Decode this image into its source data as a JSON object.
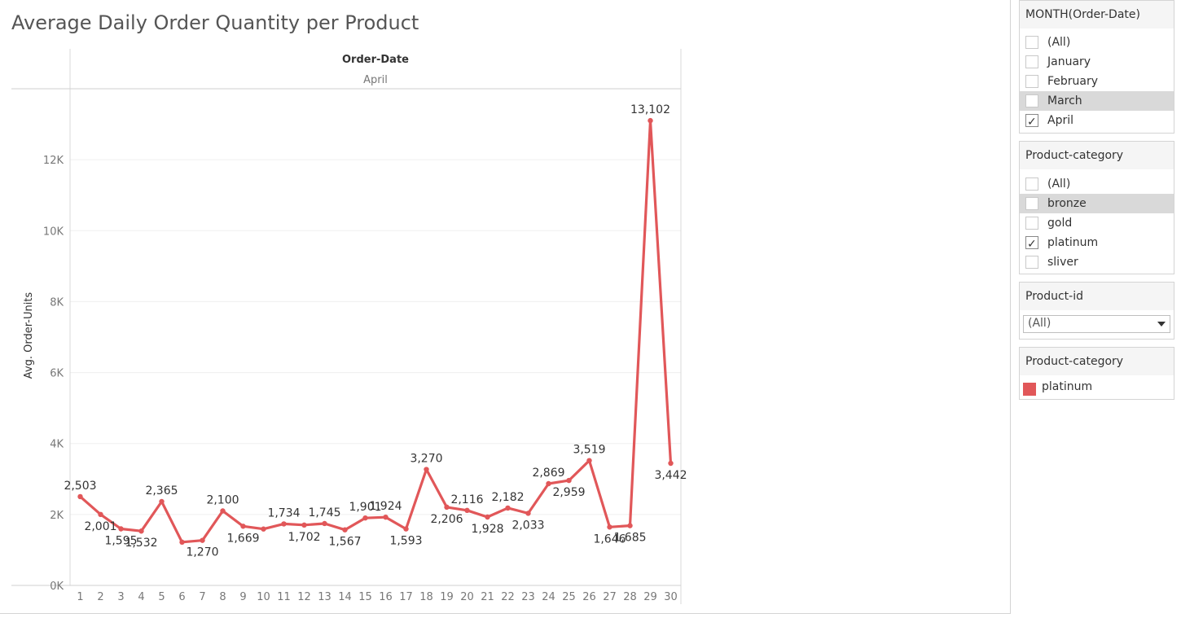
{
  "title": "Average Daily Order Quantity per Product",
  "chart_data": {
    "type": "line",
    "column_header": "Order-Date",
    "column_value": "April",
    "ylabel": "Avg. Order-Units",
    "ylim": [
      0,
      14000
    ],
    "y_ticks": [
      0,
      2000,
      4000,
      6000,
      8000,
      10000,
      12000
    ],
    "y_tick_labels": [
      "0K",
      "2K",
      "4K",
      "6K",
      "8K",
      "10K",
      "12K"
    ],
    "x": [
      1,
      2,
      3,
      4,
      5,
      6,
      7,
      8,
      9,
      10,
      11,
      12,
      13,
      14,
      15,
      16,
      17,
      18,
      19,
      20,
      21,
      22,
      23,
      24,
      25,
      26,
      27,
      28,
      29,
      30
    ],
    "series": [
      {
        "name": "platinum",
        "color": "#e15759",
        "values": [
          2503,
          2001,
          1595,
          1532,
          2365,
          1220,
          1270,
          2100,
          1669,
          1590,
          1734,
          1702,
          1745,
          1567,
          1901,
          1924,
          1593,
          3270,
          2206,
          2116,
          1928,
          2182,
          2033,
          2869,
          2959,
          3519,
          1646,
          1685,
          13102,
          3442
        ],
        "labels": [
          "2,503",
          "2,001",
          "1,595",
          "1,532",
          "2,365",
          "",
          "1,270",
          "2,100",
          "1,669",
          "",
          "1,734",
          "1,702",
          "1,745",
          "1,567",
          "1,901",
          "1,924",
          "1,593",
          "3,270",
          "2,206",
          "2,116",
          "1,928",
          "2,182",
          "2,033",
          "2,869",
          "2,959",
          "3,519",
          "1,646",
          "1,685",
          "13,102",
          "3,442"
        ],
        "label_pos": [
          "a",
          "b",
          "b",
          "b",
          "a",
          "",
          "b",
          "a",
          "b",
          "",
          "a",
          "b",
          "a",
          "b",
          "a",
          "a",
          "b",
          "a",
          "b",
          "a",
          "b",
          "a",
          "b",
          "a",
          "b",
          "a",
          "b",
          "b",
          "a",
          "b"
        ]
      }
    ],
    "grid": true
  },
  "filters": {
    "month": {
      "title": "MONTH(Order-Date)",
      "options": [
        {
          "label": "(All)",
          "checked": false,
          "highlight": false
        },
        {
          "label": "January",
          "checked": false,
          "highlight": false
        },
        {
          "label": "February",
          "checked": false,
          "highlight": false
        },
        {
          "label": "March",
          "checked": false,
          "highlight": true
        },
        {
          "label": "April",
          "checked": true,
          "highlight": false
        }
      ]
    },
    "category": {
      "title": "Product-category",
      "options": [
        {
          "label": "(All)",
          "checked": false,
          "highlight": false
        },
        {
          "label": "bronze",
          "checked": false,
          "highlight": true
        },
        {
          "label": "gold",
          "checked": false,
          "highlight": false
        },
        {
          "label": "platinum",
          "checked": true,
          "highlight": false
        },
        {
          "label": "sliver",
          "checked": false,
          "highlight": false
        }
      ]
    },
    "product_id": {
      "title": "Product-id",
      "value": "(All)"
    }
  },
  "legend": {
    "title": "Product-category",
    "items": [
      {
        "label": "platinum",
        "color": "#e15759"
      }
    ]
  }
}
